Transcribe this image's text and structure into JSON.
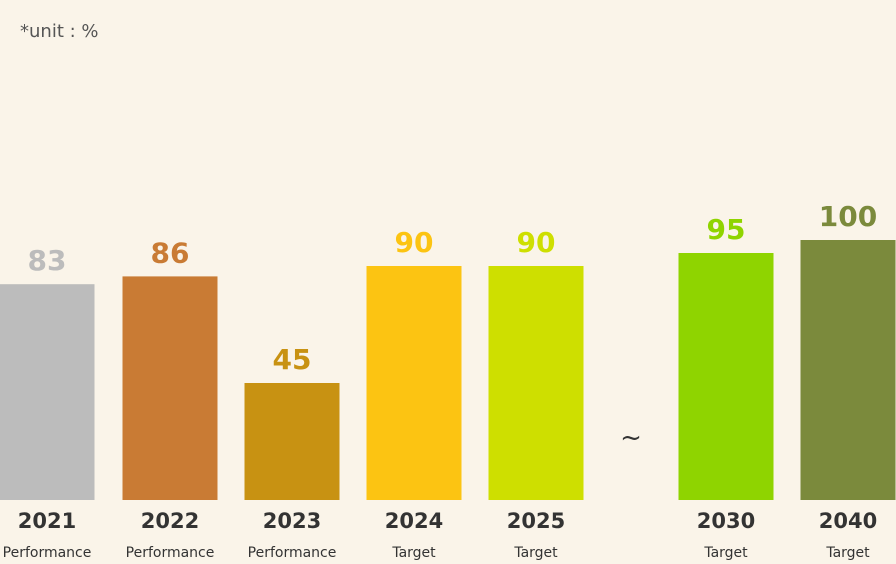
{
  "unit_note": "*unit : %",
  "gap_symbol": "~",
  "chart_data": {
    "type": "bar",
    "categories": [
      "2021",
      "2022",
      "2023",
      "2024",
      "2025",
      "2030",
      "2040"
    ],
    "category_sublabels": [
      "Performance",
      "Performance",
      "Performance",
      "Target",
      "Target",
      "Target",
      "Target"
    ],
    "values": [
      83,
      86,
      45,
      90,
      90,
      95,
      100
    ],
    "colors": [
      "#bcbcbc",
      "#c97b34",
      "#c89212",
      "#fcc412",
      "#cedf00",
      "#8fd400",
      "#7b8a3c"
    ],
    "value_label_colors": [
      "#bcbcbc",
      "#c97b34",
      "#c89212",
      "#fcc412",
      "#cedf00",
      "#8fd400",
      "#7b8a3c"
    ],
    "unit": "%",
    "gap_after_index": 4
  }
}
